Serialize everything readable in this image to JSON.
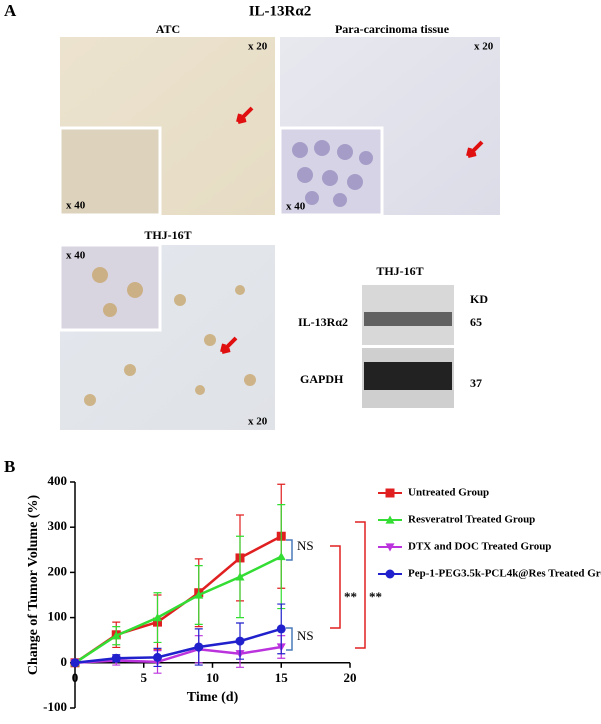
{
  "panel_a": {
    "label": "A",
    "title": "IL-13Rα2",
    "images": [
      {
        "title": "ATC",
        "magnification": "x 20",
        "inset_magnification": "x 40"
      },
      {
        "title": "Para-carcinoma tissue",
        "magnification": "x 20",
        "inset_magnification": "x 40"
      },
      {
        "title": "THJ-16T",
        "magnification": "x 20",
        "inset_magnification": "x 40"
      }
    ],
    "blot": {
      "title": "THJ-16T",
      "unit": "KD",
      "bands": [
        {
          "name": "IL-13Rα2",
          "kd": 65
        },
        {
          "name": "GAPDH",
          "kd": 37
        }
      ]
    }
  },
  "chart_data": {
    "type": "line",
    "panel_label": "B",
    "x_label": "Time (d)",
    "y_label": "Change of Tumor Volume (%)",
    "x": [
      0,
      3,
      6,
      9,
      12,
      15
    ],
    "xlim": [
      0,
      20
    ],
    "xticks": [
      0,
      5,
      10,
      15,
      20
    ],
    "ylim": [
      -100,
      400
    ],
    "yticks": [
      -100,
      0,
      100,
      200,
      300,
      400
    ],
    "series": [
      {
        "name": "Untreated Group",
        "color": "#e02020",
        "marker": "square",
        "values": [
          0,
          62,
          90,
          155,
          232,
          280
        ],
        "errors": [
          0,
          28,
          60,
          75,
          95,
          115
        ]
      },
      {
        "name": "Resveratrol Treated Group",
        "color": "#33dd33",
        "marker": "triangle-up",
        "values": [
          0,
          60,
          100,
          150,
          190,
          235
        ],
        "errors": [
          0,
          20,
          55,
          65,
          90,
          115
        ]
      },
      {
        "name": "DTX and DOC Treated Group",
        "color": "#bb33dd",
        "marker": "triangle-down",
        "values": [
          0,
          5,
          2,
          30,
          20,
          35
        ],
        "errors": [
          0,
          10,
          25,
          30,
          30,
          25
        ]
      },
      {
        "name": "Pep-1-PEG3.5k-PCL4k@Res Treated Group",
        "color": "#2020cc",
        "marker": "circle",
        "values": [
          0,
          10,
          12,
          35,
          48,
          75
        ],
        "errors": [
          0,
          8,
          20,
          40,
          40,
          55
        ]
      }
    ],
    "annotations": [
      "NS",
      "NS",
      "**",
      "**"
    ]
  }
}
